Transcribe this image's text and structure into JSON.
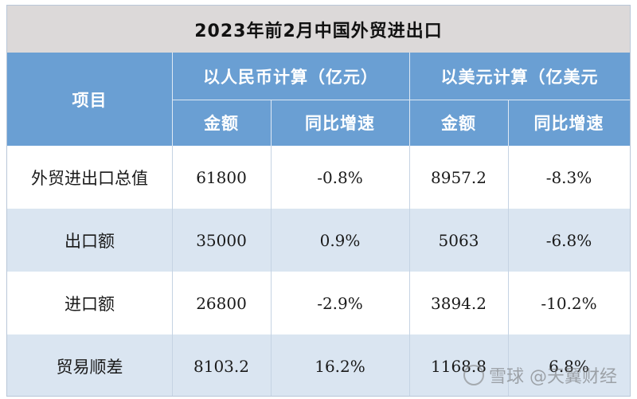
{
  "title": "2023年前2月中国外贸进出口",
  "header": {
    "item": "项目",
    "rmb_group": "以人民币计算（亿元）",
    "usd_group": "以美元计算（亿美元",
    "amount": "金额",
    "yoy": "同比增速"
  },
  "rows": [
    {
      "item": "外贸进出口总值",
      "rmb_amount": "61800",
      "rmb_yoy": "-0.8%",
      "usd_amount": "8957.2",
      "usd_yoy": "-8.3%"
    },
    {
      "item": "出口额",
      "rmb_amount": "35000",
      "rmb_yoy": "0.9%",
      "usd_amount": "5063",
      "usd_yoy": "-6.8%"
    },
    {
      "item": "进口额",
      "rmb_amount": "26800",
      "rmb_yoy": "-2.9%",
      "usd_amount": "3894.2",
      "usd_yoy": "-10.2%"
    },
    {
      "item": "贸易顺差",
      "rmb_amount": "8103.2",
      "rmb_yoy": "16.2%",
      "usd_amount": "1168.8",
      "usd_yoy": "6.8%"
    }
  ],
  "watermark": "雪球 @天翼财经",
  "colors": {
    "header": "#6a9fd3",
    "title_bg": "#dcd9d9",
    "stripe": "#dae5f1"
  }
}
